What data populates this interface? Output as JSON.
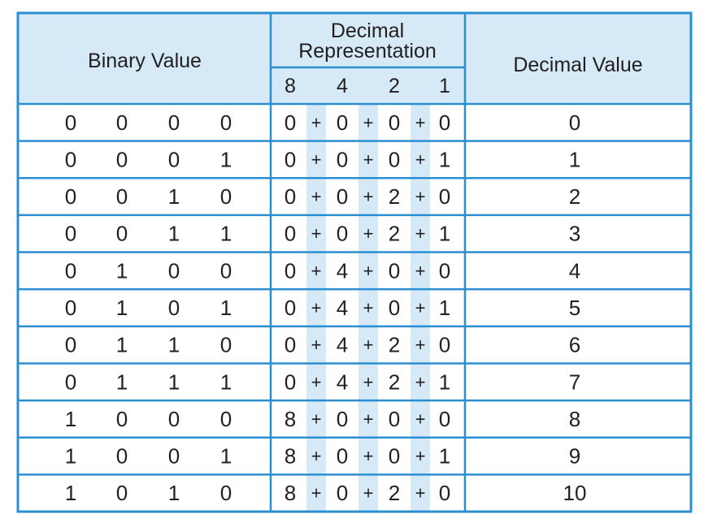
{
  "header": {
    "binary": "Binary Value",
    "representation": [
      "Decimal",
      "Representation"
    ],
    "weights": [
      8,
      4,
      2,
      1
    ],
    "decimal": "Decimal Value"
  },
  "operator": "+",
  "rows": [
    {
      "bits": [
        0,
        0,
        0,
        0
      ],
      "terms": [
        0,
        0,
        0,
        0
      ],
      "value": 0
    },
    {
      "bits": [
        0,
        0,
        0,
        1
      ],
      "terms": [
        0,
        0,
        0,
        1
      ],
      "value": 1
    },
    {
      "bits": [
        0,
        0,
        1,
        0
      ],
      "terms": [
        0,
        0,
        2,
        0
      ],
      "value": 2
    },
    {
      "bits": [
        0,
        0,
        1,
        1
      ],
      "terms": [
        0,
        0,
        2,
        1
      ],
      "value": 3
    },
    {
      "bits": [
        0,
        1,
        0,
        0
      ],
      "terms": [
        0,
        4,
        0,
        0
      ],
      "value": 4
    },
    {
      "bits": [
        0,
        1,
        0,
        1
      ],
      "terms": [
        0,
        4,
        0,
        1
      ],
      "value": 5
    },
    {
      "bits": [
        0,
        1,
        1,
        0
      ],
      "terms": [
        0,
        4,
        2,
        0
      ],
      "value": 6
    },
    {
      "bits": [
        0,
        1,
        1,
        1
      ],
      "terms": [
        0,
        4,
        2,
        1
      ],
      "value": 7
    },
    {
      "bits": [
        1,
        0,
        0,
        0
      ],
      "terms": [
        8,
        0,
        0,
        0
      ],
      "value": 8
    },
    {
      "bits": [
        1,
        0,
        0,
        1
      ],
      "terms": [
        8,
        0,
        0,
        1
      ],
      "value": 9
    },
    {
      "bits": [
        1,
        0,
        1,
        0
      ],
      "terms": [
        8,
        0,
        2,
        0
      ],
      "value": 10
    }
  ]
}
